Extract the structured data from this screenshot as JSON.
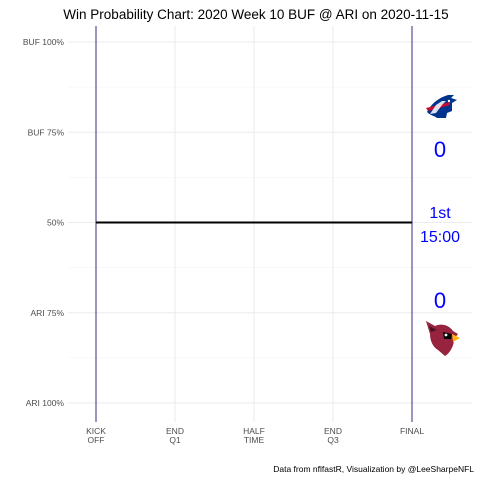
{
  "chart_data": {
    "type": "line",
    "title": "Win Probability Chart: 2020 Week 10 BUF @ ARI on 2020-11-15",
    "caption": "Data from nflfastR, Visualization by @LeeSharpeNFL",
    "x_ticks": [
      {
        "value": 0,
        "label": "KICK\nOFF"
      },
      {
        "value": 0.25,
        "label": "END\nQ1"
      },
      {
        "value": 0.5,
        "label": "HALF\nTIME"
      },
      {
        "value": 0.75,
        "label": "END\nQ3"
      },
      {
        "value": 1,
        "label": "FINAL"
      }
    ],
    "y_ticks": [
      {
        "value": 1.0,
        "label": "BUF 100%"
      },
      {
        "value": 0.75,
        "label": "BUF 75%"
      },
      {
        "value": 0.5,
        "label": "50%"
      },
      {
        "value": 0.25,
        "label": "ARI 75%"
      },
      {
        "value": 0.0,
        "label": "ARI 100%"
      }
    ],
    "xlim": [
      0,
      1
    ],
    "ylim": [
      0,
      1
    ],
    "grid": true,
    "series": [
      {
        "x": [
          0,
          1
        ],
        "y": [
          0.5,
          0.5
        ],
        "color": "#000000"
      }
    ],
    "vlines": [
      0,
      1
    ],
    "vline_color": "#1a1a7a",
    "home_team": {
      "abbr": "ARI",
      "score": "0",
      "logo_icon": "cardinals-logo-icon"
    },
    "away_team": {
      "abbr": "BUF",
      "score": "0",
      "logo_icon": "bills-logo-icon"
    },
    "clock": {
      "quarter": "1st",
      "time": "15:00"
    },
    "score_color": "#0000ff"
  }
}
